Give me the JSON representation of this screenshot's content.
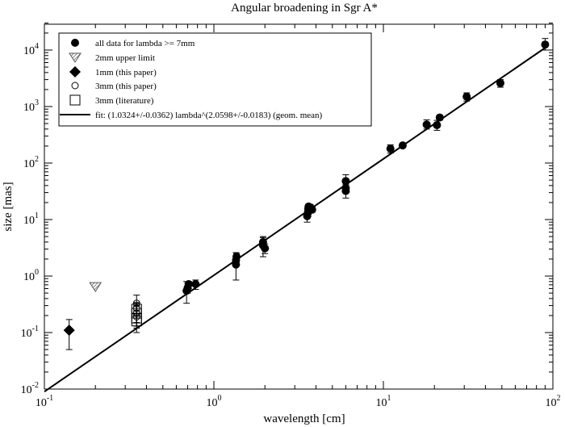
{
  "chart_data": {
    "type": "scatter",
    "title": "Angular broadening in Sgr A*",
    "xlabel": "wavelength [cm]",
    "ylabel": "size [mas]",
    "xscale": "log",
    "yscale": "log",
    "xlim": [
      0.1,
      100
    ],
    "ylim": [
      0.01,
      30000
    ],
    "x_ticks": [
      {
        "value": 0.1,
        "base": "10",
        "exp": "-1"
      },
      {
        "value": 1,
        "base": "10",
        "exp": "0"
      },
      {
        "value": 10,
        "base": "10",
        "exp": "1"
      },
      {
        "value": 100,
        "base": "10",
        "exp": "2"
      }
    ],
    "y_ticks": [
      {
        "value": 0.01,
        "base": "10",
        "exp": "-2"
      },
      {
        "value": 0.1,
        "base": "10",
        "exp": "-1"
      },
      {
        "value": 1,
        "base": "10",
        "exp": "0"
      },
      {
        "value": 10,
        "base": "10",
        "exp": "1"
      },
      {
        "value": 100,
        "base": "10",
        "exp": "2"
      },
      {
        "value": 1000,
        "base": "10",
        "exp": "3"
      },
      {
        "value": 10000,
        "base": "10",
        "exp": "4"
      }
    ],
    "legend_position": "top-left",
    "series": [
      {
        "name": "all data for lambda >= 7mm",
        "marker": "filled-circle",
        "color": "#000000",
        "points": [
          {
            "x": 0.69,
            "y": 0.55,
            "ylo": 0.33,
            "yhi": 0.8
          },
          {
            "x": 0.7,
            "y": 0.62,
            "ylo": 0.5,
            "yhi": 0.75
          },
          {
            "x": 0.71,
            "y": 0.72,
            "ylo": 0.6,
            "yhi": 0.8
          },
          {
            "x": 0.78,
            "y": 0.72,
            "ylo": 0.58,
            "yhi": 0.85
          },
          {
            "x": 1.35,
            "y": 1.6,
            "ylo": 0.85,
            "yhi": 2.6
          },
          {
            "x": 1.35,
            "y": 1.9,
            "ylo": 1.6,
            "yhi": 2.2
          },
          {
            "x": 1.36,
            "y": 2.2,
            "ylo": 1.9,
            "yhi": 2.5
          },
          {
            "x": 1.95,
            "y": 3.5,
            "ylo": 2.2,
            "yhi": 5.0
          },
          {
            "x": 1.95,
            "y": 4.0,
            "ylo": 3.3,
            "yhi": 4.8
          },
          {
            "x": 2.0,
            "y": 3.1,
            "ylo": 2.5,
            "yhi": 3.7
          },
          {
            "x": 3.55,
            "y": 11.5,
            "ylo": 9.0,
            "yhi": 14.0
          },
          {
            "x": 3.6,
            "y": 13.5,
            "ylo": 11.5,
            "yhi": 15.5
          },
          {
            "x": 3.6,
            "y": 15.5,
            "ylo": 13.5,
            "yhi": 17.5
          },
          {
            "x": 3.62,
            "y": 17.0,
            "ylo": 15.5,
            "yhi": 18.5
          },
          {
            "x": 3.7,
            "y": 16.5,
            "ylo": 14.5,
            "yhi": 18.5
          },
          {
            "x": 3.8,
            "y": 15.0,
            "ylo": 13.5,
            "yhi": 16.5
          },
          {
            "x": 6.0,
            "y": 32,
            "ylo": 24,
            "yhi": 40
          },
          {
            "x": 6.0,
            "y": 36,
            "ylo": 30,
            "yhi": 42
          },
          {
            "x": 6.0,
            "y": 48,
            "ylo": 36,
            "yhi": 62
          },
          {
            "x": 11.0,
            "y": 180,
            "ylo": 150,
            "yhi": 210
          },
          {
            "x": 13.0,
            "y": 205,
            "ylo": 190,
            "yhi": 220
          },
          {
            "x": 18.0,
            "y": 480,
            "ylo": 400,
            "yhi": 580
          },
          {
            "x": 20.7,
            "y": 470,
            "ylo": 380,
            "yhi": 570
          },
          {
            "x": 21.5,
            "y": 640,
            "ylo": 580,
            "yhi": 700
          },
          {
            "x": 31.0,
            "y": 1500,
            "ylo": 1250,
            "yhi": 1750
          },
          {
            "x": 49.0,
            "y": 2600,
            "ylo": 2200,
            "yhi": 3000
          },
          {
            "x": 90.0,
            "y": 12500,
            "ylo": 10000,
            "yhi": 16000
          }
        ]
      },
      {
        "name": "2mm upper limit",
        "marker": "hatched-triangle-down",
        "color": "#555555",
        "points": [
          {
            "x": 0.2,
            "y": 0.65
          }
        ]
      },
      {
        "name": "1mm (this paper)",
        "marker": "filled-diamond",
        "color": "#000000",
        "points": [
          {
            "x": 0.14,
            "y": 0.11,
            "ylo": 0.05,
            "yhi": 0.17
          }
        ]
      },
      {
        "name": "3mm (this paper)",
        "marker": "open-circle",
        "color": "#000000",
        "points": [
          {
            "x": 0.35,
            "y": 0.33,
            "ylo": 0.2,
            "yhi": 0.46
          },
          {
            "x": 0.35,
            "y": 0.27,
            "ylo": 0.2,
            "yhi": 0.33
          },
          {
            "x": 0.35,
            "y": 0.22,
            "ylo": 0.15,
            "yhi": 0.29
          },
          {
            "x": 0.35,
            "y": 0.19,
            "ylo": 0.13,
            "yhi": 0.25
          }
        ]
      },
      {
        "name": "3mm (literature)",
        "marker": "open-square",
        "color": "#000000",
        "points": [
          {
            "x": 0.35,
            "y": 0.26,
            "ylo": 0.18,
            "yhi": 0.34
          },
          {
            "x": 0.35,
            "y": 0.22,
            "ylo": 0.15,
            "yhi": 0.3
          },
          {
            "x": 0.35,
            "y": 0.18,
            "ylo": 0.12,
            "yhi": 0.24
          },
          {
            "x": 0.35,
            "y": 0.16,
            "ylo": 0.1,
            "yhi": 0.22
          }
        ]
      },
      {
        "name": "fit: (1.0324+/-0.0362) lambda^(2.0598+/-0.0183) (geom. mean)",
        "marker": "line",
        "color": "#000000",
        "fit": {
          "coefficient": 1.0324,
          "exponent": 2.0598
        },
        "x_range": [
          0.1,
          90
        ]
      }
    ]
  }
}
